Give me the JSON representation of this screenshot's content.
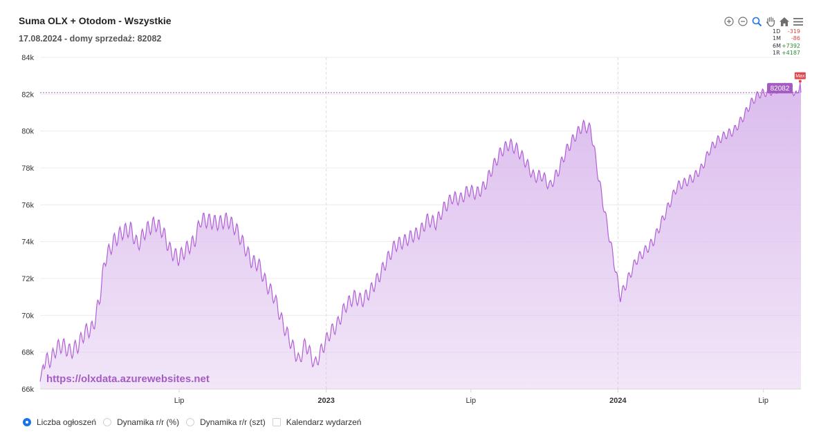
{
  "header": {
    "title": "Suma OLX + Otodom - Wszystkie",
    "subtitle": "17.08.2024 - domy sprzedaż: 82082"
  },
  "toolbar": {
    "icons": [
      "zoom-in-icon",
      "zoom-out-icon",
      "zoom-selection-icon",
      "pan-hand-icon",
      "home-reset-icon",
      "menu-icon"
    ]
  },
  "stats": [
    {
      "key": "1D",
      "value": "-319"
    },
    {
      "key": "1M",
      "value": "-86"
    },
    {
      "key": "6M",
      "value": "+7392"
    },
    {
      "key": "1R",
      "value": "+4187"
    }
  ],
  "watermark": "https://olxdata.azurewebsites.net",
  "legend": [
    {
      "label": "Liczba ogłoszeń",
      "selected": true
    },
    {
      "label": "Dynamika r/r (%)",
      "selected": false
    },
    {
      "label": "Dynamika r/r (szt)",
      "selected": false
    },
    {
      "label": "Kalendarz wydarzeń",
      "selected": false
    }
  ],
  "colors": {
    "line": "#b15fd6",
    "fill": "#d9b8ec",
    "annotation": "#a45cc4",
    "max": "#e0474c",
    "radio_on": "#1a73e8"
  },
  "chart_data": {
    "type": "area",
    "ylim": [
      66000,
      84000
    ],
    "y_ticks": [
      "66k",
      "68k",
      "70k",
      "72k",
      "74k",
      "76k",
      "78k",
      "80k",
      "82k",
      "84k"
    ],
    "x_range": [
      "2022-01-08",
      "2024-08-17"
    ],
    "x_ticks": [
      {
        "date": "2022-07-01",
        "label": "Lip",
        "bold": false
      },
      {
        "date": "2023-01-01",
        "label": "2023",
        "bold": true
      },
      {
        "date": "2023-07-01",
        "label": "Lip",
        "bold": false
      },
      {
        "date": "2024-01-01",
        "label": "2024",
        "bold": true
      },
      {
        "date": "2024-07-01",
        "label": "Lip",
        "bold": false
      }
    ],
    "annotation": {
      "value": 82082,
      "label": "82082"
    },
    "max_marker": {
      "date": "2024-08-16",
      "value": 82700,
      "label": "Max"
    },
    "grid": true,
    "series": [
      {
        "points": [
          [
            "2022-01-08",
            66400
          ],
          [
            "2022-01-12",
            67500
          ],
          [
            "2022-01-22",
            67600
          ],
          [
            "2022-01-28",
            68200
          ],
          [
            "2022-02-05",
            68400
          ],
          [
            "2022-02-15",
            68000
          ],
          [
            "2022-02-25",
            68400
          ],
          [
            "2022-03-05",
            69100
          ],
          [
            "2022-03-15",
            69300
          ],
          [
            "2022-03-23",
            70800
          ],
          [
            "2022-03-30",
            73000
          ],
          [
            "2022-04-10",
            74000
          ],
          [
            "2022-04-20",
            74500
          ],
          [
            "2022-05-01",
            74700
          ],
          [
            "2022-05-10",
            73800
          ],
          [
            "2022-05-20",
            74600
          ],
          [
            "2022-06-01",
            75000
          ],
          [
            "2022-06-10",
            74600
          ],
          [
            "2022-06-20",
            73500
          ],
          [
            "2022-06-30",
            73100
          ],
          [
            "2022-07-10",
            73600
          ],
          [
            "2022-07-20",
            74000
          ],
          [
            "2022-07-28",
            75200
          ],
          [
            "2022-08-10",
            75100
          ],
          [
            "2022-08-20",
            75000
          ],
          [
            "2022-08-30",
            75200
          ],
          [
            "2022-09-10",
            74700
          ],
          [
            "2022-09-20",
            73800
          ],
          [
            "2022-09-30",
            72900
          ],
          [
            "2022-10-08",
            72800
          ],
          [
            "2022-10-18",
            71700
          ],
          [
            "2022-10-28",
            71000
          ],
          [
            "2022-11-08",
            69500
          ],
          [
            "2022-11-18",
            68500
          ],
          [
            "2022-11-28",
            67500
          ],
          [
            "2022-12-06",
            68500
          ],
          [
            "2022-12-12",
            67900
          ],
          [
            "2022-12-18",
            67300
          ],
          [
            "2022-12-26",
            68100
          ],
          [
            "2023-01-05",
            69000
          ],
          [
            "2023-01-15",
            69500
          ],
          [
            "2023-01-25",
            70500
          ],
          [
            "2023-02-05",
            71000
          ],
          [
            "2023-02-15",
            70800
          ],
          [
            "2023-02-25",
            71300
          ],
          [
            "2023-03-08",
            72100
          ],
          [
            "2023-03-18",
            73000
          ],
          [
            "2023-03-28",
            73800
          ],
          [
            "2023-04-08",
            74000
          ],
          [
            "2023-04-18",
            74300
          ],
          [
            "2023-04-28",
            74500
          ],
          [
            "2023-05-08",
            75200
          ],
          [
            "2023-05-18",
            75000
          ],
          [
            "2023-05-28",
            75800
          ],
          [
            "2023-06-08",
            76400
          ],
          [
            "2023-06-18",
            76300
          ],
          [
            "2023-06-28",
            76800
          ],
          [
            "2023-07-08",
            76600
          ],
          [
            "2023-07-18",
            77000
          ],
          [
            "2023-07-28",
            78000
          ],
          [
            "2023-08-08",
            78900
          ],
          [
            "2023-08-18",
            79300
          ],
          [
            "2023-08-28",
            79000
          ],
          [
            "2023-09-08",
            78300
          ],
          [
            "2023-09-18",
            77500
          ],
          [
            "2023-09-28",
            77600
          ],
          [
            "2023-10-08",
            77000
          ],
          [
            "2023-10-18",
            77800
          ],
          [
            "2023-10-28",
            78900
          ],
          [
            "2023-11-08",
            79700
          ],
          [
            "2023-11-18",
            80300
          ],
          [
            "2023-11-28",
            80100
          ],
          [
            "2023-12-03",
            78800
          ],
          [
            "2023-12-08",
            77400
          ],
          [
            "2023-12-18",
            75000
          ],
          [
            "2023-12-28",
            72700
          ],
          [
            "2024-01-04",
            71000
          ],
          [
            "2024-01-14",
            72000
          ],
          [
            "2024-01-24",
            73000
          ],
          [
            "2024-02-04",
            73500
          ],
          [
            "2024-02-14",
            74000
          ],
          [
            "2024-02-24",
            75000
          ],
          [
            "2024-03-05",
            76000
          ],
          [
            "2024-03-15",
            77000
          ],
          [
            "2024-03-25",
            77200
          ],
          [
            "2024-04-05",
            77500
          ],
          [
            "2024-04-15",
            78000
          ],
          [
            "2024-04-25",
            79000
          ],
          [
            "2024-05-05",
            79500
          ],
          [
            "2024-05-15",
            79800
          ],
          [
            "2024-05-25",
            80000
          ],
          [
            "2024-06-05",
            80700
          ],
          [
            "2024-06-15",
            81500
          ],
          [
            "2024-06-25",
            82000
          ],
          [
            "2024-07-05",
            82100
          ],
          [
            "2024-07-15",
            82200
          ],
          [
            "2024-07-25",
            82400
          ],
          [
            "2024-08-05",
            82300
          ],
          [
            "2024-08-12",
            81900
          ],
          [
            "2024-08-16",
            82700
          ],
          [
            "2024-08-17",
            82082
          ]
        ]
      }
    ]
  }
}
